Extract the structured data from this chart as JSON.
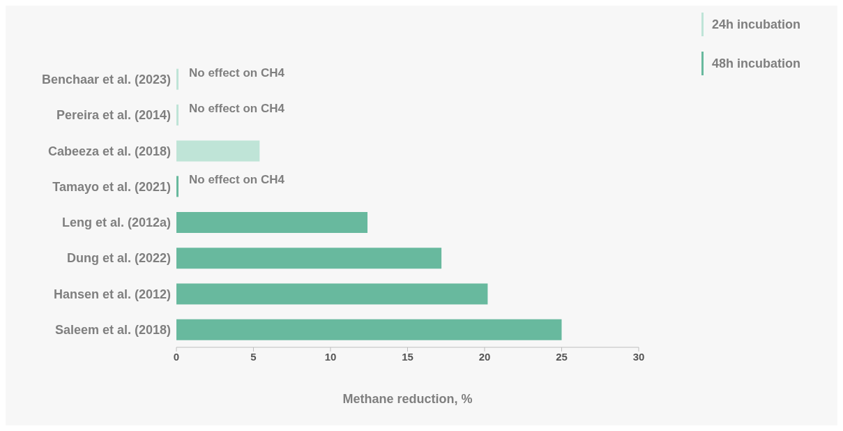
{
  "chart_data": {
    "type": "bar",
    "orientation": "horizontal",
    "stacked": true,
    "categories": [
      "Benchaar et al. (2023)",
      "Pereira et al. (2014)",
      "Cabeeza et al. (2018)",
      "Tamayo et al. (2021)",
      "Leng et al. (2012a)",
      "Dung et al. (2022)",
      "Hansen et al. (2012)",
      "Saleem et al. (2018)"
    ],
    "series": [
      {
        "name": "24h incubation",
        "color": "#bfe4d7",
        "values": [
          0,
          0,
          5.4,
          null,
          null,
          null,
          null,
          null
        ],
        "value_labels": [
          "No effect on CH4",
          "No effect on CH4",
          null,
          null,
          null,
          null,
          null,
          null
        ]
      },
      {
        "name": "48h incubation",
        "color": "#68b99e",
        "values": [
          null,
          null,
          null,
          0,
          12.4,
          17.2,
          20.2,
          25.0
        ],
        "value_labels": [
          null,
          null,
          null,
          "No effect on CH4",
          null,
          null,
          null,
          null
        ]
      }
    ],
    "xlabel": "Methane reduction, %",
    "xlim": [
      0,
      30
    ],
    "xticks": [
      0,
      5,
      10,
      15,
      20,
      25,
      30
    ],
    "grid": false,
    "legend": "top right"
  }
}
